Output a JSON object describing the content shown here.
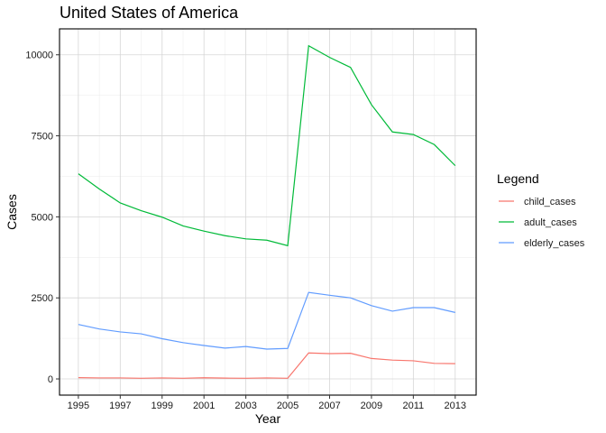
{
  "chart_data": {
    "type": "line",
    "title": "United States of America",
    "xlabel": "Year",
    "ylabel": "Cases",
    "x": [
      1995,
      1996,
      1997,
      1998,
      1999,
      2000,
      2001,
      2002,
      2003,
      2004,
      2005,
      2006,
      2007,
      2008,
      2009,
      2010,
      2011,
      2012,
      2013
    ],
    "xticks": [
      1995,
      1997,
      1999,
      2001,
      2003,
      2005,
      2007,
      2009,
      2011,
      2013
    ],
    "yticks": [
      0,
      2500,
      5000,
      7500,
      10000
    ],
    "xlim": [
      1994.1,
      2014
    ],
    "ylim": [
      -500,
      10800
    ],
    "grid": true,
    "legend_title": "Legend",
    "legend_position": "right",
    "series": [
      {
        "name": "child_cases",
        "color": "#F8766D",
        "values": [
          40,
          30,
          30,
          20,
          30,
          20,
          35,
          25,
          20,
          30,
          20,
          800,
          780,
          790,
          630,
          580,
          560,
          480,
          470
        ]
      },
      {
        "name": "adult_cases",
        "color": "#00BA38",
        "values": [
          6330,
          5860,
          5430,
          5190,
          4990,
          4720,
          4560,
          4420,
          4320,
          4280,
          4110,
          10280,
          9920,
          9610,
          8460,
          7620,
          7540,
          7230,
          6580
        ]
      },
      {
        "name": "elderly_cases",
        "color": "#619CFF",
        "values": [
          1680,
          1540,
          1450,
          1390,
          1240,
          1120,
          1030,
          950,
          1000,
          920,
          940,
          2670,
          2580,
          2500,
          2260,
          2090,
          2200,
          2200,
          2050
        ]
      }
    ]
  }
}
